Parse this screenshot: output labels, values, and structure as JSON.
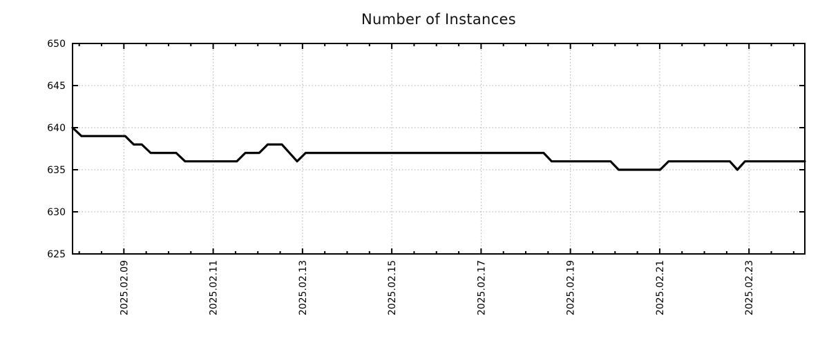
{
  "chart_data": {
    "type": "line",
    "title": "Number of Instances",
    "xlabel": "",
    "ylabel": "",
    "x_unit": "date, shown as day-of-month (February 2025) decimal",
    "xlim": [
      7.85,
      24.25
    ],
    "ylim": [
      625,
      650
    ],
    "grid": "dotted gray on major ticks, border ticks mirrored on all sides",
    "legend": "none",
    "y_ticks": [
      625,
      630,
      635,
      640,
      645,
      650
    ],
    "y_tick_labels": [
      "625",
      "630",
      "635",
      "640",
      "645",
      "650"
    ],
    "y_gridlines": [
      630,
      635,
      640,
      645
    ],
    "x_major_ticks": [
      9,
      11,
      13,
      15,
      17,
      19,
      21,
      23
    ],
    "x_major_tick_labels": [
      "2025.02.09",
      "2025.02.11",
      "2025.02.13",
      "2025.02.15",
      "2025.02.17",
      "2025.02.19",
      "2025.02.21",
      "2025.02.23"
    ],
    "x_minor_tick_interval": 0.5,
    "series": [
      {
        "name": "instances",
        "color": "#000000",
        "points": [
          [
            7.85,
            640
          ],
          [
            8.05,
            639
          ],
          [
            9.03,
            639
          ],
          [
            9.22,
            638
          ],
          [
            9.4,
            638
          ],
          [
            9.6,
            637
          ],
          [
            10.17,
            637
          ],
          [
            10.37,
            636
          ],
          [
            11.53,
            636
          ],
          [
            11.72,
            637
          ],
          [
            12.03,
            637
          ],
          [
            12.22,
            638
          ],
          [
            12.54,
            638
          ],
          [
            12.88,
            636
          ],
          [
            13.07,
            637
          ],
          [
            18.4,
            637
          ],
          [
            18.58,
            636
          ],
          [
            19.9,
            636
          ],
          [
            20.08,
            635
          ],
          [
            21.01,
            635
          ],
          [
            21.2,
            636
          ],
          [
            22.57,
            636
          ],
          [
            22.74,
            635
          ],
          [
            22.91,
            636
          ],
          [
            24.25,
            636
          ]
        ]
      }
    ],
    "colors": {
      "line": "#000000",
      "grid": "#a8a8a8",
      "border": "#000000",
      "text": "#111111",
      "background": "#ffffff"
    }
  }
}
